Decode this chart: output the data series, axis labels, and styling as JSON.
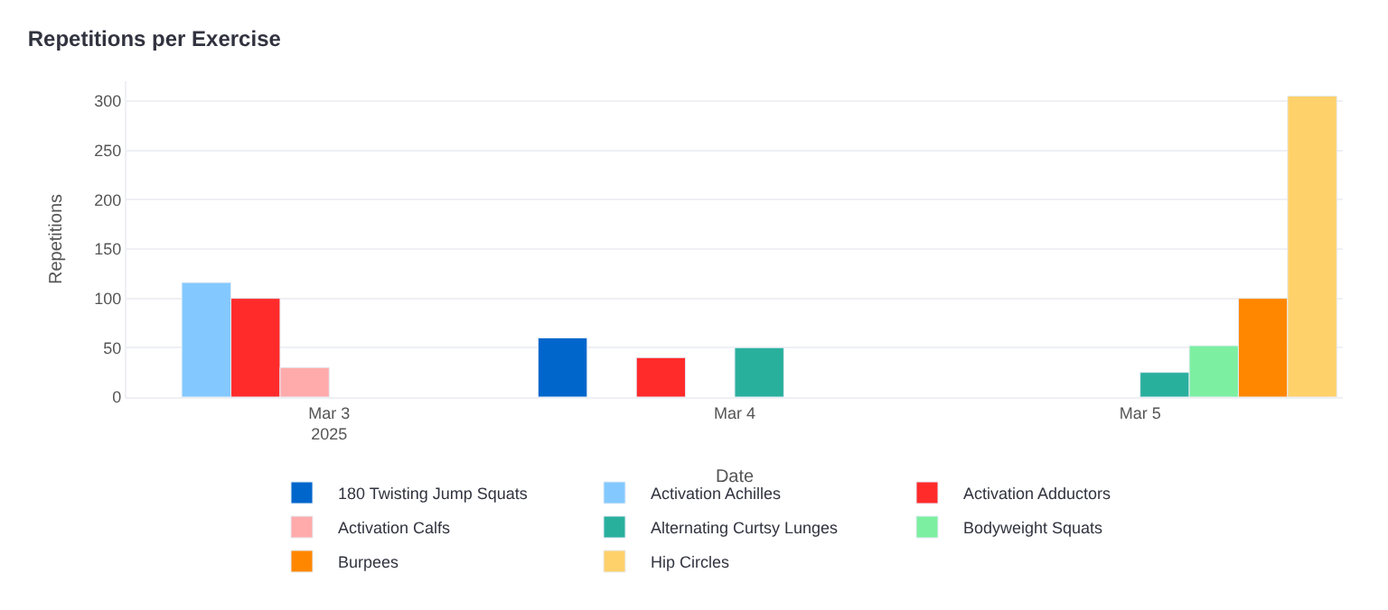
{
  "chart_data": {
    "type": "bar",
    "title": "Repetitions per Exercise",
    "xlabel": "Date",
    "ylabel": "Repetitions",
    "x": [
      "2025-03-03",
      "2025-03-04",
      "2025-03-05"
    ],
    "series": [
      {
        "name": "180 Twisting Jump Squats",
        "color": "#0066cc",
        "values": [
          null,
          60,
          null
        ]
      },
      {
        "name": "Activation Achilles",
        "color": "#83c9ff",
        "values": [
          116,
          null,
          null
        ]
      },
      {
        "name": "Activation Adductors",
        "color": "#ff2b2b",
        "values": [
          100,
          40,
          null
        ]
      },
      {
        "name": "Activation Calfs",
        "color": "#ffabab",
        "values": [
          30,
          null,
          null
        ]
      },
      {
        "name": "Alternating Curtsy Lunges",
        "color": "#29b09d",
        "values": [
          null,
          50,
          25
        ]
      },
      {
        "name": "Bodyweight Squats",
        "color": "#7defa1",
        "values": [
          null,
          null,
          52
        ]
      },
      {
        "name": "Burpees",
        "color": "#ff8700",
        "values": [
          null,
          null,
          100
        ]
      },
      {
        "name": "Hip Circles",
        "color": "#ffd16a",
        "values": [
          null,
          null,
          305
        ]
      }
    ],
    "xlim": [
      "2025-03-02T12:00",
      "2025-03-05T12:00"
    ],
    "xticks": [
      {
        "value": "2025-03-03",
        "label": "Mar 3\n2025"
      },
      {
        "value": "2025-03-04",
        "label": "Mar 4"
      },
      {
        "value": "2025-03-05",
        "label": "Mar 5"
      }
    ],
    "ylim": [
      0,
      320
    ],
    "yticks": [
      0,
      50,
      100,
      150,
      200,
      250,
      300
    ],
    "grid": "y",
    "legend": "bottom"
  }
}
